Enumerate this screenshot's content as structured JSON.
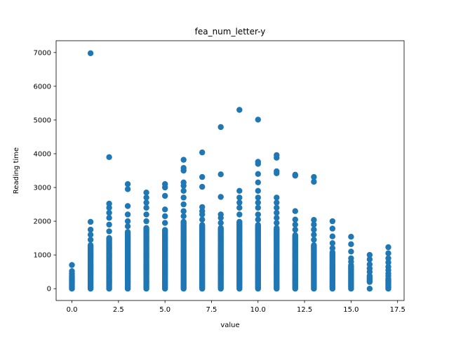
{
  "chart_data": {
    "type": "scatter",
    "title": "fea_num_letter-y",
    "xlabel": "value",
    "ylabel": "Reading time",
    "xlim": [
      -0.85,
      17.85
    ],
    "ylim": [
      -350,
      7350
    ],
    "xticks": [
      0.0,
      2.5,
      5.0,
      7.5,
      10.0,
      12.5,
      15.0,
      17.5
    ],
    "xtick_labels": [
      "0.0",
      "2.5",
      "5.0",
      "7.5",
      "10.0",
      "12.5",
      "15.0",
      "17.5"
    ],
    "yticks": [
      0,
      1000,
      2000,
      3000,
      4000,
      5000,
      6000,
      7000
    ],
    "ytick_labels": [
      "0",
      "1000",
      "2000",
      "3000",
      "4000",
      "5000",
      "6000",
      "7000"
    ],
    "grid": false,
    "marker_color": "#1f77b4",
    "columns": [
      {
        "x": 0,
        "dense_max": 400,
        "extra": [
          450,
          520,
          700
        ]
      },
      {
        "x": 1,
        "dense_max": 1300,
        "extra": [
          1450,
          1600,
          1750,
          1980,
          6980
        ]
      },
      {
        "x": 2,
        "dense_max": 1500,
        "extra": [
          1700,
          1900,
          2100,
          2250,
          2400,
          2520,
          3900
        ]
      },
      {
        "x": 3,
        "dense_max": 1700,
        "extra": [
          1850,
          2000,
          2200,
          2450,
          2950,
          3100
        ]
      },
      {
        "x": 4,
        "dense_max": 1800,
        "extra": [
          2000,
          2200,
          2400,
          2550,
          2700,
          2850
        ]
      },
      {
        "x": 5,
        "dense_max": 1750,
        "extra": [
          1950,
          2150,
          2350,
          2750,
          3000,
          3100
        ]
      },
      {
        "x": 6,
        "dense_max": 2000,
        "extra": [
          2150,
          2300,
          2500,
          2700,
          2900,
          3050,
          3150,
          3500,
          3580,
          3820
        ]
      },
      {
        "x": 7,
        "dense_max": 1900,
        "extra": [
          2050,
          2200,
          2300,
          2420,
          3020,
          3310,
          4040
        ]
      },
      {
        "x": 8,
        "dense_max": 1800,
        "extra": [
          1950,
          2100,
          2200,
          2720,
          3390,
          4790
        ]
      },
      {
        "x": 9,
        "dense_max": 2000,
        "extra": [
          2200,
          2400,
          2550,
          2700,
          2900,
          5300
        ]
      },
      {
        "x": 10,
        "dense_max": 1900,
        "extra": [
          2050,
          2200,
          2400,
          2550,
          2700,
          2900,
          3150,
          3400,
          3700,
          3760,
          5010
        ]
      },
      {
        "x": 11,
        "dense_max": 1800,
        "extra": [
          1950,
          2100,
          2250,
          2400,
          2550,
          2700,
          3420,
          3480,
          3880,
          3960
        ]
      },
      {
        "x": 12,
        "dense_max": 1600,
        "extra": [
          1750,
          1900,
          2050,
          2300,
          3350,
          3380
        ]
      },
      {
        "x": 13,
        "dense_max": 1300,
        "extra": [
          1450,
          1600,
          1750,
          1900,
          2040,
          3170,
          3310
        ]
      },
      {
        "x": 14,
        "dense_max": 1100,
        "extra": [
          1200,
          1350,
          1550,
          1780,
          2000
        ]
      },
      {
        "x": 15,
        "dense_max": 700,
        "extra": [
          800,
          900,
          1100,
          1320,
          1540
        ]
      },
      {
        "x": 16,
        "dense_max": 400,
        "extra": [
          500,
          600,
          720,
          870,
          1000
        ],
        "low_gap": true
      },
      {
        "x": 17,
        "dense_max": 300,
        "extra": [
          380,
          450,
          550,
          650,
          780,
          900,
          1050,
          1230
        ]
      }
    ]
  }
}
